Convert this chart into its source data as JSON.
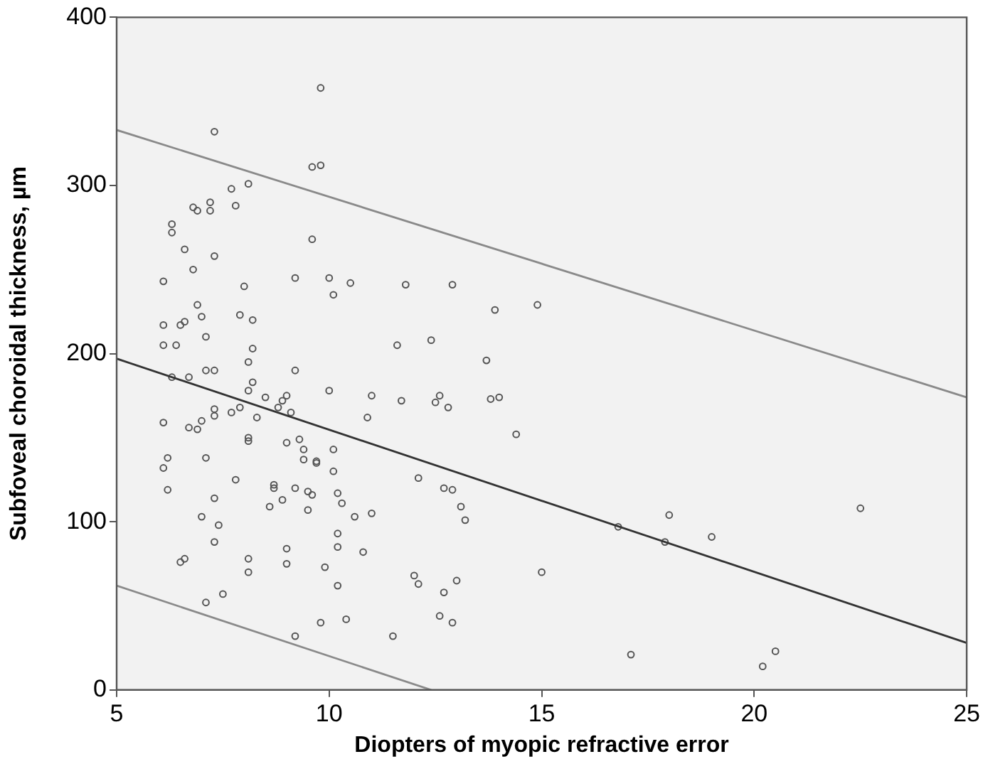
{
  "chart_data": {
    "type": "scatter",
    "xlabel": "Diopters of myopic refractive error",
    "ylabel": "Subfoveal choroidal thickness, µm",
    "xlim": [
      5,
      25
    ],
    "xticks": [
      5,
      10,
      15,
      20,
      25
    ],
    "ylim": [
      0,
      400
    ],
    "yticks": [
      0,
      100,
      200,
      300,
      400
    ],
    "grid": false,
    "legend": false,
    "series": [
      {
        "marker": "circle",
        "color": "#555555",
        "x": [
          6.1,
          6.1,
          6.1,
          6.1,
          6.1,
          6.2,
          6.2,
          6.3,
          6.3,
          6.3,
          6.4,
          6.5,
          6.6,
          6.6,
          6.5,
          6.6,
          6.7,
          6.7,
          6.8,
          6.8,
          6.9,
          6.9,
          6.9,
          7.0,
          7.0,
          7.1,
          7.1,
          7.1,
          7.0,
          7.2,
          7.2,
          7.3,
          7.3,
          7.3,
          7.3,
          7.3,
          7.3,
          7.3,
          7.4,
          7.5,
          7.1,
          7.7,
          7.7,
          7.8,
          7.8,
          7.9,
          7.9,
          8.0,
          8.1,
          8.1,
          8.1,
          8.1,
          8.1,
          8.1,
          8.2,
          8.2,
          8.2,
          8.1,
          8.3,
          8.5,
          8.6,
          8.7,
          8.7,
          8.8,
          8.9,
          8.9,
          9.0,
          9.0,
          9.0,
          9.0,
          9.2,
          9.2,
          9.1,
          9.2,
          9.2,
          9.3,
          9.4,
          9.4,
          9.5,
          9.6,
          9.6,
          9.6,
          9.5,
          9.7,
          9.7,
          9.8,
          9.8,
          9.8,
          9.9,
          10.0,
          10.0,
          10.1,
          10.1,
          10.1,
          10.2,
          10.2,
          10.2,
          10.3,
          10.2,
          10.4,
          10.5,
          10.6,
          10.8,
          10.9,
          11.0,
          11.0,
          11.5,
          11.6,
          11.7,
          11.8,
          12.0,
          12.1,
          12.1,
          12.4,
          12.5,
          12.6,
          12.6,
          12.7,
          12.7,
          12.8,
          12.9,
          12.9,
          12.9,
          13.0,
          13.1,
          13.2,
          13.7,
          13.8,
          13.9,
          14.0,
          14.4,
          14.9,
          15.0,
          16.8,
          17.1,
          17.9,
          18.0,
          19.0,
          20.2,
          20.5,
          22.5
        ],
        "values": [
          243,
          217,
          205,
          159,
          132,
          138,
          119,
          186,
          277,
          272,
          205,
          217,
          219,
          262,
          76,
          78,
          186,
          156,
          287,
          250,
          155,
          229,
          285,
          222,
          160,
          210,
          190,
          138,
          103,
          290,
          285,
          258,
          332,
          190,
          163,
          167,
          114,
          88,
          98,
          57,
          52,
          298,
          165,
          288,
          125,
          223,
          168,
          240,
          195,
          178,
          148,
          150,
          78,
          70,
          220,
          203,
          183,
          301,
          162,
          174,
          109,
          122,
          120,
          168,
          172,
          113,
          175,
          147,
          75,
          84,
          245,
          190,
          165,
          120,
          32,
          149,
          143,
          137,
          118,
          116,
          268,
          311,
          107,
          136,
          135,
          358,
          312,
          40,
          73,
          245,
          178,
          235,
          143,
          130,
          117,
          93,
          85,
          111,
          62,
          42,
          242,
          103,
          82,
          162,
          175,
          105,
          32,
          205,
          172,
          241,
          68,
          126,
          63,
          208,
          171,
          175,
          44,
          58,
          120,
          168,
          241,
          119,
          40,
          65,
          109,
          101,
          196,
          173,
          226,
          174,
          152,
          229,
          70,
          97,
          21,
          88,
          104,
          91,
          14,
          23,
          108
        ]
      },
      {
        "type": "line",
        "marker": "none",
        "color": "#333333",
        "x": [
          5,
          25
        ],
        "values": [
          197,
          28
        ]
      },
      {
        "type": "line",
        "marker": "none",
        "color": "#8a8a8a",
        "x": [
          5,
          25
        ],
        "values": [
          333,
          174
        ]
      },
      {
        "type": "line",
        "marker": "none",
        "color": "#8a8a8a",
        "x": [
          5,
          12.4
        ],
        "values": [
          62,
          0
        ]
      }
    ]
  }
}
